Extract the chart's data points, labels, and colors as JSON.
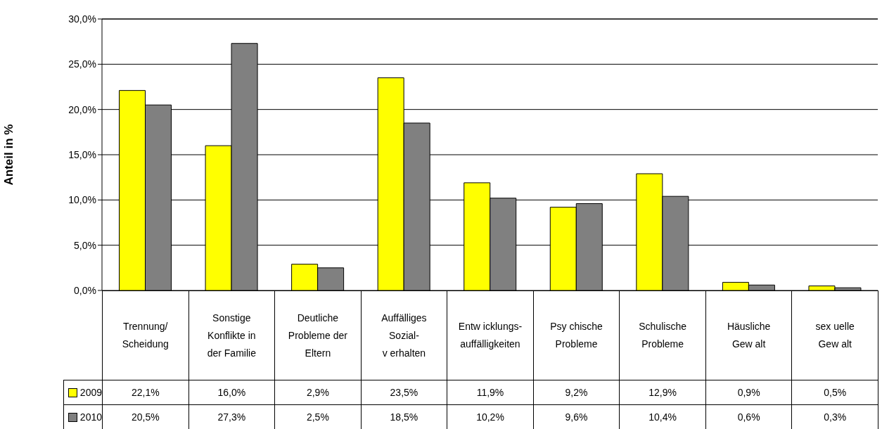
{
  "chart_data": {
    "type": "bar",
    "ylabel": "Anteil in %",
    "categories": [
      "Trennung/\nScheidung",
      "Sonstige\nKonflikte in\nder Familie",
      "Deutliche\nProbleme der\nEltern",
      "Auffälliges\nSozial-\nv erhalten",
      "Entw icklungs-\nauffälligkeiten",
      "Psy chische\nProbleme",
      "Schulische\nProbleme",
      "Häusliche\nGew alt",
      "sex uelle\nGew alt"
    ],
    "series": [
      {
        "name": "2009",
        "color": "#ffff00",
        "values": [
          22.1,
          16.0,
          2.9,
          23.5,
          11.9,
          9.2,
          12.9,
          0.9,
          0.5
        ],
        "value_labels": [
          "22,1%",
          "16,0%",
          "2,9%",
          "23,5%",
          "11,9%",
          "9,2%",
          "12,9%",
          "0,9%",
          "0,5%"
        ]
      },
      {
        "name": "2010",
        "color": "#808080",
        "values": [
          20.5,
          27.3,
          2.5,
          18.5,
          10.2,
          9.6,
          10.4,
          0.6,
          0.3
        ],
        "value_labels": [
          "20,5%",
          "27,3%",
          "2,5%",
          "18,5%",
          "10,2%",
          "9,6%",
          "10,4%",
          "0,6%",
          "0,3%"
        ]
      }
    ],
    "ylim": [
      0,
      30
    ],
    "yticks": [
      {
        "value": 0,
        "label": "0,0%"
      },
      {
        "value": 5,
        "label": "5,0%"
      },
      {
        "value": 10,
        "label": "10,0%"
      },
      {
        "value": 15,
        "label": "15,0%"
      },
      {
        "value": 20,
        "label": "20,0%"
      },
      {
        "value": 25,
        "label": "25,0%"
      },
      {
        "value": 30,
        "label": "30,0%"
      }
    ],
    "grid": "y",
    "legend": "bottom left"
  }
}
